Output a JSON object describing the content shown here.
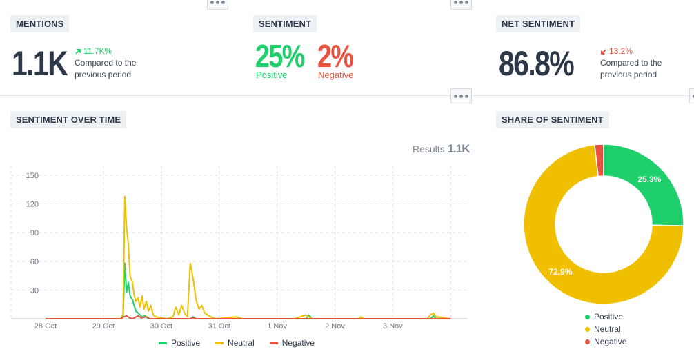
{
  "mentions": {
    "title": "MENTIONS",
    "value": "1.1K",
    "delta": "11.7K%",
    "compare_line1": "Compared to the",
    "compare_line2": "previous period"
  },
  "sentiment": {
    "title": "SENTIMENT",
    "positive_value": "25%",
    "positive_label": "Positive",
    "negative_value": "2%",
    "negative_label": "Negative"
  },
  "net_sentiment": {
    "title": "NET SENTIMENT",
    "value": "86.8%",
    "delta": "13.2%",
    "compare_line1": "Compared to the",
    "compare_line2": "previous period"
  },
  "sentiment_over_time": {
    "title": "SENTIMENT OVER TIME",
    "results_label": "Results",
    "results_value": "1.1K"
  },
  "share_of_sentiment": {
    "title": "SHARE OF SENTIMENT"
  },
  "colors": {
    "positive": "#1fcf6b",
    "neutral": "#f0c000",
    "negative": "#e8533f"
  },
  "chart_data": [
    {
      "type": "line",
      "x_ticks": [
        "28 Oct",
        "29 Oct",
        "30 Oct",
        "31 Oct",
        "1 Nov",
        "2 Nov",
        "3 Nov"
      ],
      "y_ticks": [
        "30",
        "60",
        "90",
        "120",
        "150"
      ],
      "ylim": [
        0,
        160
      ],
      "xlim": [
        0,
        7
      ],
      "grid": true,
      "legend": "bottom",
      "series": [
        {
          "name": "Positive",
          "color": "#1fcf6b",
          "points": [
            [
              0,
              0
            ],
            [
              1.3,
              0
            ],
            [
              1.34,
              2
            ],
            [
              1.37,
              58
            ],
            [
              1.4,
              28
            ],
            [
              1.43,
              38
            ],
            [
              1.46,
              24
            ],
            [
              1.5,
              20
            ],
            [
              1.53,
              14
            ],
            [
              1.56,
              8
            ],
            [
              1.6,
              6
            ],
            [
              1.63,
              4
            ],
            [
              1.67,
              2
            ],
            [
              1.72,
              3
            ],
            [
              1.76,
              1
            ],
            [
              1.8,
              0
            ],
            [
              2.5,
              0
            ],
            [
              2.55,
              2
            ],
            [
              2.6,
              0
            ],
            [
              4.5,
              0
            ],
            [
              4.55,
              4
            ],
            [
              4.6,
              0
            ],
            [
              6.65,
              0
            ],
            [
              6.7,
              3
            ],
            [
              6.75,
              0
            ],
            [
              7,
              0
            ]
          ]
        },
        {
          "name": "Neutral",
          "color": "#f0c000",
          "points": [
            [
              0,
              0
            ],
            [
              1.3,
              0
            ],
            [
              1.34,
              5
            ],
            [
              1.37,
              128
            ],
            [
              1.4,
              95
            ],
            [
              1.43,
              78
            ],
            [
              1.46,
              45
            ],
            [
              1.5,
              38
            ],
            [
              1.53,
              25
            ],
            [
              1.56,
              18
            ],
            [
              1.6,
              22
            ],
            [
              1.63,
              12
            ],
            [
              1.67,
              24
            ],
            [
              1.7,
              10
            ],
            [
              1.74,
              18
            ],
            [
              1.78,
              8
            ],
            [
              1.82,
              14
            ],
            [
              1.86,
              4
            ],
            [
              1.9,
              2
            ],
            [
              2.1,
              0
            ],
            [
              2.2,
              2
            ],
            [
              2.25,
              12
            ],
            [
              2.3,
              4
            ],
            [
              2.35,
              14
            ],
            [
              2.4,
              6
            ],
            [
              2.45,
              2
            ],
            [
              2.5,
              58
            ],
            [
              2.55,
              42
            ],
            [
              2.6,
              20
            ],
            [
              2.65,
              10
            ],
            [
              2.7,
              14
            ],
            [
              2.75,
              6
            ],
            [
              2.8,
              4
            ],
            [
              2.85,
              2
            ],
            [
              2.95,
              0
            ],
            [
              3.3,
              2
            ],
            [
              3.4,
              0
            ],
            [
              4.3,
              0
            ],
            [
              4.4,
              2
            ],
            [
              4.5,
              4
            ],
            [
              4.55,
              2
            ],
            [
              4.6,
              0
            ],
            [
              5.4,
              0
            ],
            [
              5.45,
              2
            ],
            [
              5.5,
              0
            ],
            [
              6.6,
              0
            ],
            [
              6.65,
              4
            ],
            [
              6.7,
              6
            ],
            [
              6.75,
              2
            ],
            [
              7,
              0
            ]
          ]
        },
        {
          "name": "Negative",
          "color": "#e8533f",
          "points": [
            [
              0,
              0
            ],
            [
              1.3,
              0
            ],
            [
              1.35,
              2
            ],
            [
              1.4,
              3
            ],
            [
              1.45,
              1
            ],
            [
              1.5,
              0
            ],
            [
              1.6,
              3
            ],
            [
              1.65,
              1
            ],
            [
              1.75,
              2
            ],
            [
              1.8,
              0
            ],
            [
              2.5,
              0
            ],
            [
              2.55,
              1
            ],
            [
              2.6,
              0
            ],
            [
              7,
              0
            ]
          ]
        }
      ]
    },
    {
      "type": "pie",
      "style": "donut",
      "labels": [
        "Positive",
        "Neutral",
        "Negative"
      ],
      "values": [
        25.3,
        72.9,
        1.8
      ],
      "value_labels": [
        "25.3%",
        "72.9%",
        ""
      ],
      "colors": [
        "#1fcf6b",
        "#f0c000",
        "#e8533f"
      ],
      "legend": "bottom"
    }
  ]
}
